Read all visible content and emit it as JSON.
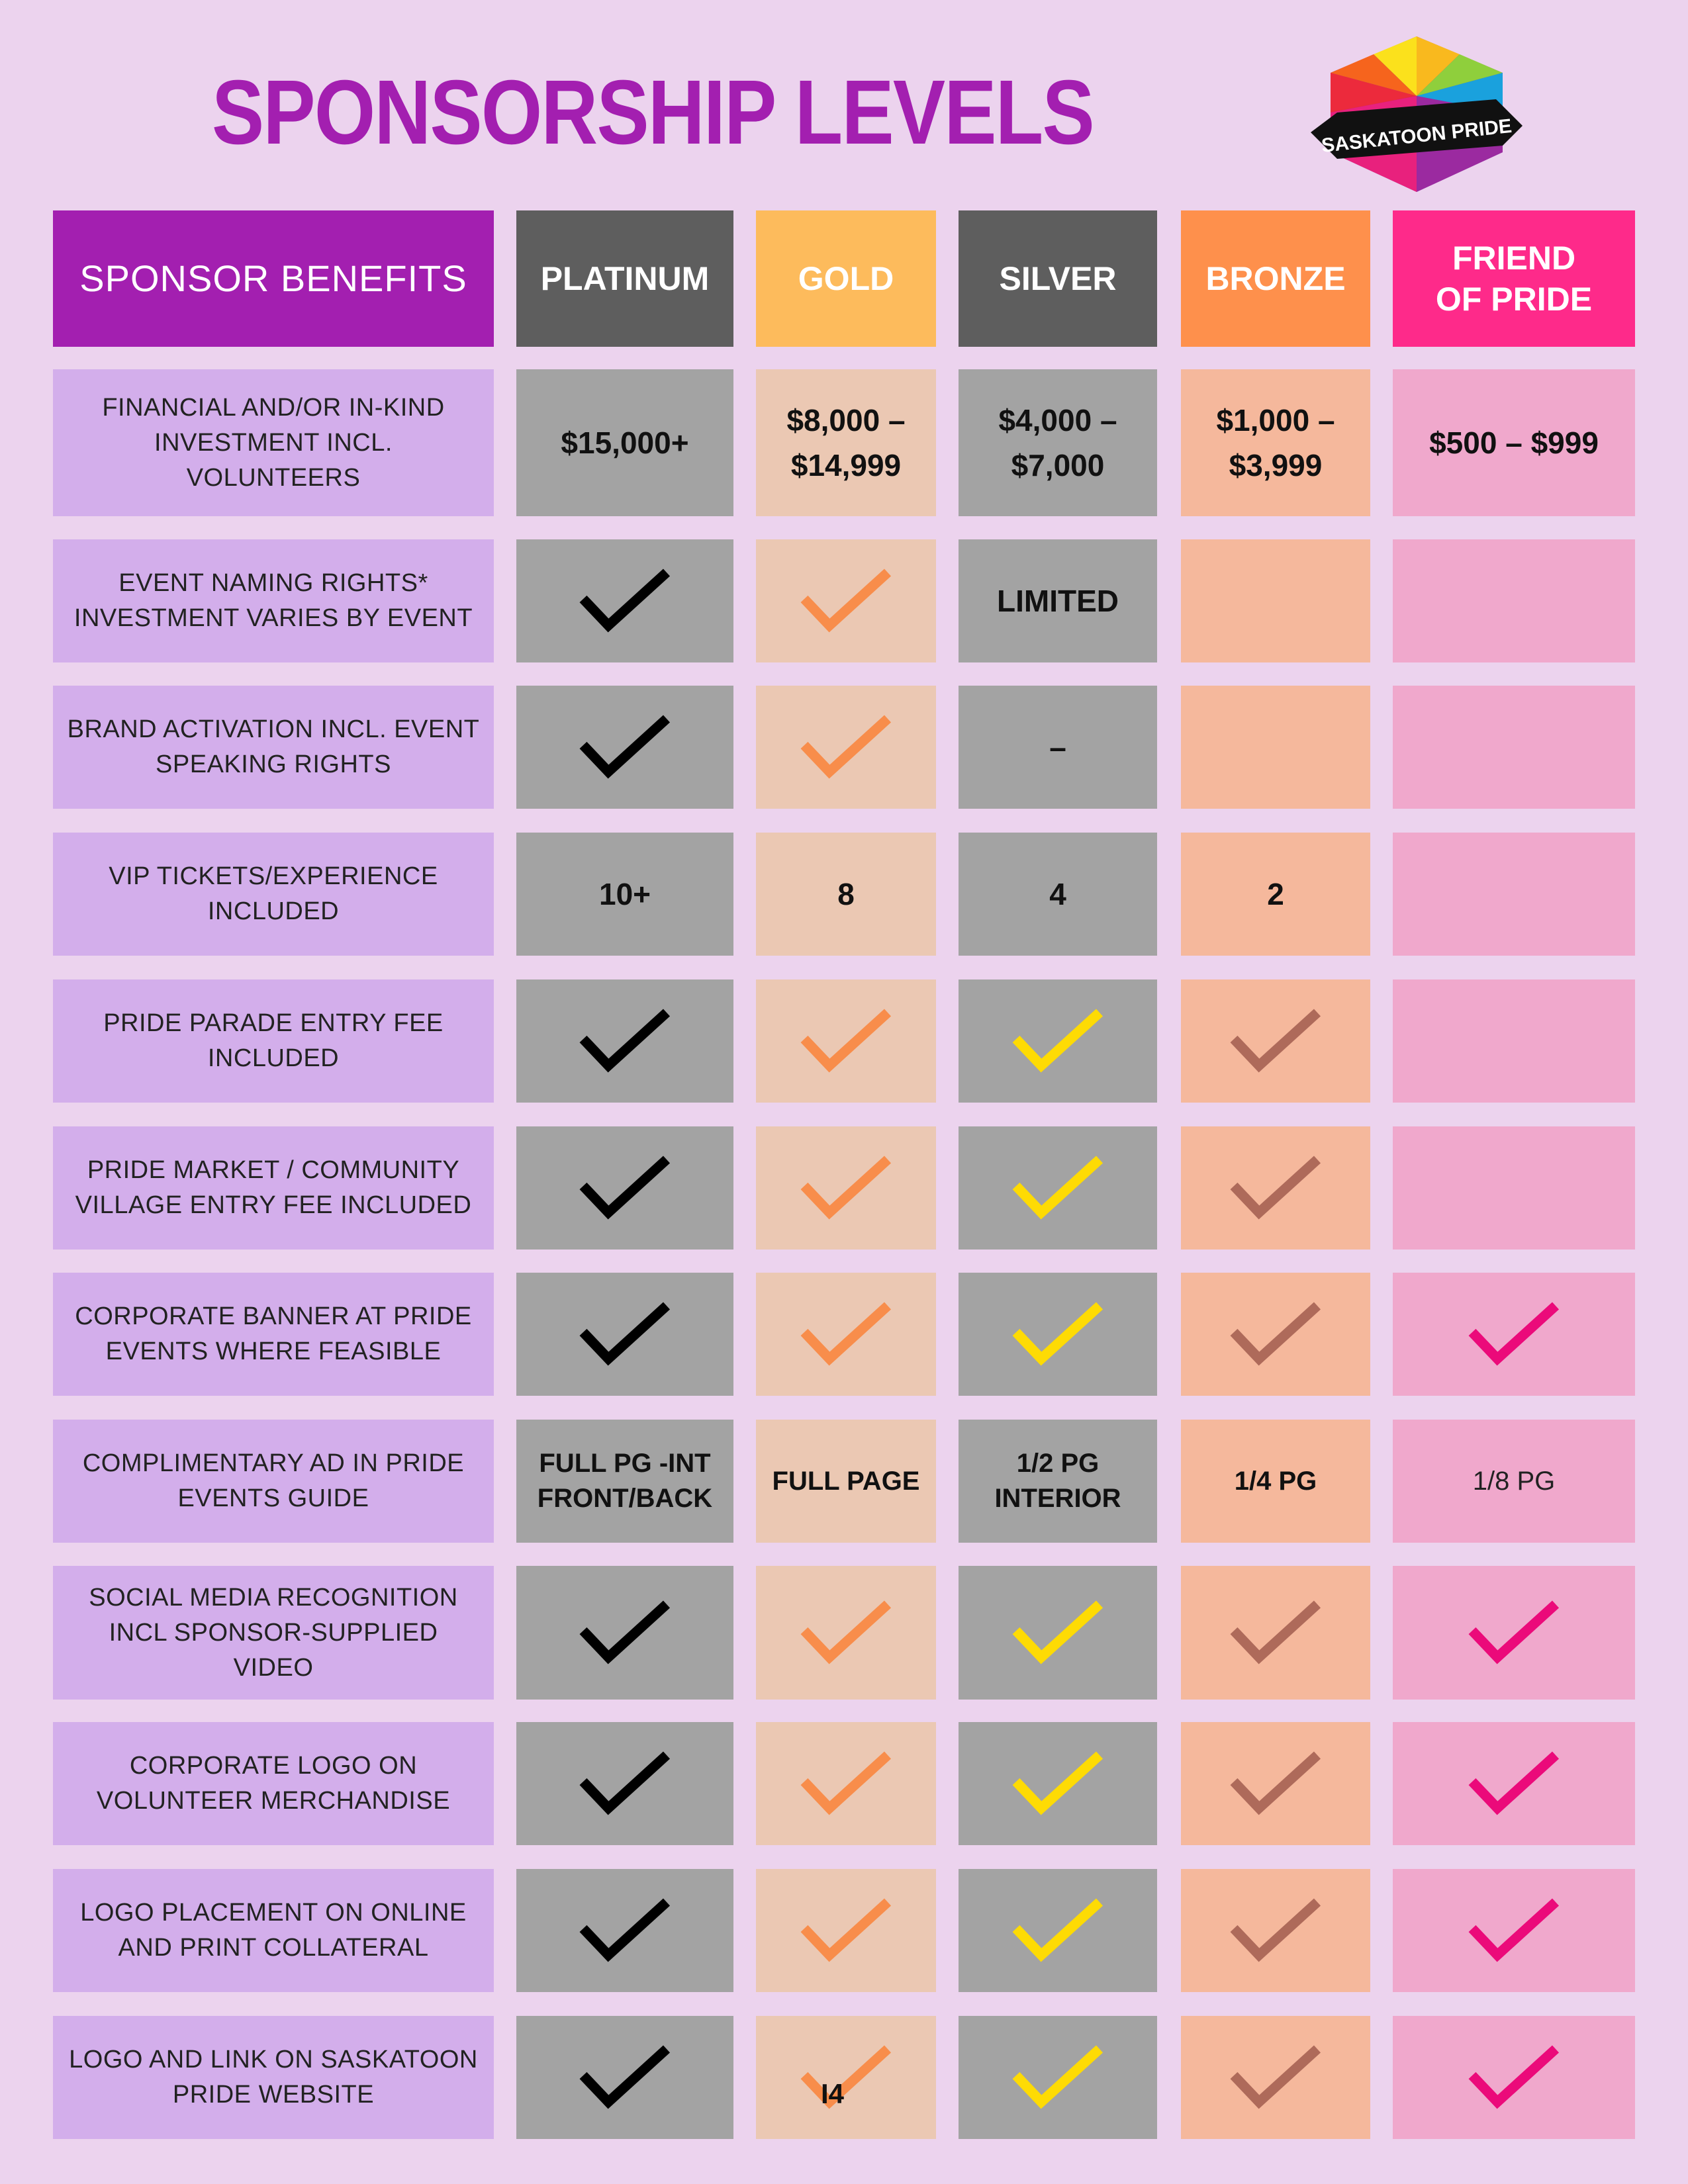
{
  "title": "SPONSORSHIP LEVELS",
  "logo": {
    "text": "SASKATOON PRIDE"
  },
  "colors": {
    "page_bg": "#ecd3ee",
    "title": "#a31fb0",
    "benefit_header": "#a31fb0",
    "benefit_cell": "#d3aeeb",
    "platinum_header": "#5e5e5e",
    "platinum_cell": "#a3a3a3",
    "platinum_check": "#000000",
    "gold_header": "#fdbb5c",
    "gold_cell": "#ebc8b3",
    "gold_check": "#f88d4b",
    "silver_header": "#5e5e5e",
    "silver_cell": "#a3a3a3",
    "silver_check": "#fedb04",
    "bronze_header": "#fe904c",
    "bronze_cell": "#f5b89c",
    "bronze_check": "#ae6a5a",
    "friend_header": "#fe2a8a",
    "friend_cell": "#f0a8cc",
    "friend_check": "#eb0a7a"
  },
  "columns": [
    {
      "key": "benefit",
      "label": "SPONSOR BENEFITS"
    },
    {
      "key": "platinum",
      "label": "PLATINUM"
    },
    {
      "key": "gold",
      "label": "GOLD"
    },
    {
      "key": "silver",
      "label": "SILVER"
    },
    {
      "key": "bronze",
      "label": "BRONZE"
    },
    {
      "key": "friend",
      "label": "FRIEND OF PRIDE"
    }
  ],
  "rows": [
    {
      "benefit": "FINANCIAL AND/OR IN-KIND INVESTMENT INCL. VOLUNTEERS",
      "cells": [
        "$15,000+",
        "$8,000 – $14,999",
        "$4,000 – $7,000",
        "$1,000 – $3,999",
        "$500 – $999"
      ]
    },
    {
      "benefit": "EVENT NAMING RIGHTS* INVESTMENT VARIES BY EVENT",
      "cells": [
        "check",
        "check",
        "LIMITED",
        "",
        ""
      ]
    },
    {
      "benefit": "BRAND ACTIVATION INCL. EVENT SPEAKING RIGHTS",
      "cells": [
        "check",
        "check",
        "–",
        "",
        ""
      ]
    },
    {
      "benefit": "VIP TICKETS/EXPERIENCE INCLUDED",
      "cells": [
        "10+",
        "8",
        "4",
        "2",
        ""
      ]
    },
    {
      "benefit": "PRIDE PARADE ENTRY FEE INCLUDED",
      "cells": [
        "check",
        "check",
        "check",
        "check",
        ""
      ]
    },
    {
      "benefit": "PRIDE MARKET / COMMUNITY VILLAGE ENTRY FEE INCLUDED",
      "cells": [
        "check",
        "check",
        "check",
        "check",
        ""
      ]
    },
    {
      "benefit": "CORPORATE BANNER AT PRIDE EVENTS WHERE FEASIBLE",
      "cells": [
        "check",
        "check",
        "check",
        "check",
        "check"
      ]
    },
    {
      "benefit": "COMPLIMENTARY AD IN PRIDE EVENTS GUIDE",
      "cells": [
        "FULL PG -INT FRONT/BACK",
        "FULL PAGE",
        "1/2 PG INTERIOR",
        "1/4 PG",
        "1/8 PG"
      ]
    },
    {
      "benefit": "SOCIAL MEDIA RECOGNITION INCL SPONSOR-SUPPLIED VIDEO",
      "cells": [
        "check",
        "check",
        "check",
        "check",
        "check"
      ]
    },
    {
      "benefit": "CORPORATE LOGO ON VOLUNTEER MERCHANDISE",
      "cells": [
        "check",
        "check",
        "check",
        "check",
        "check"
      ]
    },
    {
      "benefit": "LOGO PLACEMENT ON ONLINE AND PRINT COLLATERAL",
      "cells": [
        "check",
        "check",
        "check",
        "check",
        "check"
      ]
    },
    {
      "benefit": "LOGO AND LINK ON SASKATOON PRIDE WEBSITE",
      "cells": [
        "check",
        "check",
        "check",
        "check",
        "check"
      ]
    }
  ],
  "stray_text": "I4"
}
